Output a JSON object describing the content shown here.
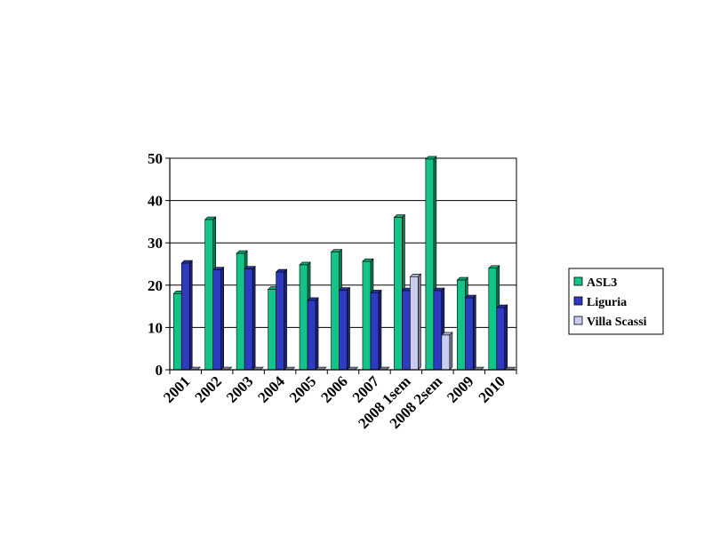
{
  "chart_data": {
    "type": "bar",
    "categories": [
      "2001",
      "2002",
      "2003",
      "2004",
      "2005",
      "2006",
      "2007",
      "2008 1sem",
      "2008 2sem",
      "2009",
      "2010"
    ],
    "series": [
      {
        "name": "ASL3",
        "color": "#12c48a",
        "values": [
          18,
          35.5,
          27.5,
          19,
          24.8,
          27.8,
          25.6,
          36,
          49.8,
          21.2,
          24
        ]
      },
      {
        "name": "Liguria",
        "color": "#2e3bbf",
        "values": [
          25.2,
          23.6,
          23.8,
          23.1,
          16.4,
          18.8,
          18.2,
          18.7,
          18.7,
          17,
          14.7
        ]
      },
      {
        "name": "Villa Scassi",
        "color": "#c8ccf0",
        "values": [
          0,
          0,
          0,
          0,
          0,
          0,
          0,
          22,
          8.2,
          0,
          0
        ]
      }
    ],
    "ylim": [
      0,
      50
    ],
    "yticks": [
      "0",
      "10",
      "20",
      "30",
      "40",
      "50"
    ],
    "grid": true,
    "legend_position": "right"
  }
}
